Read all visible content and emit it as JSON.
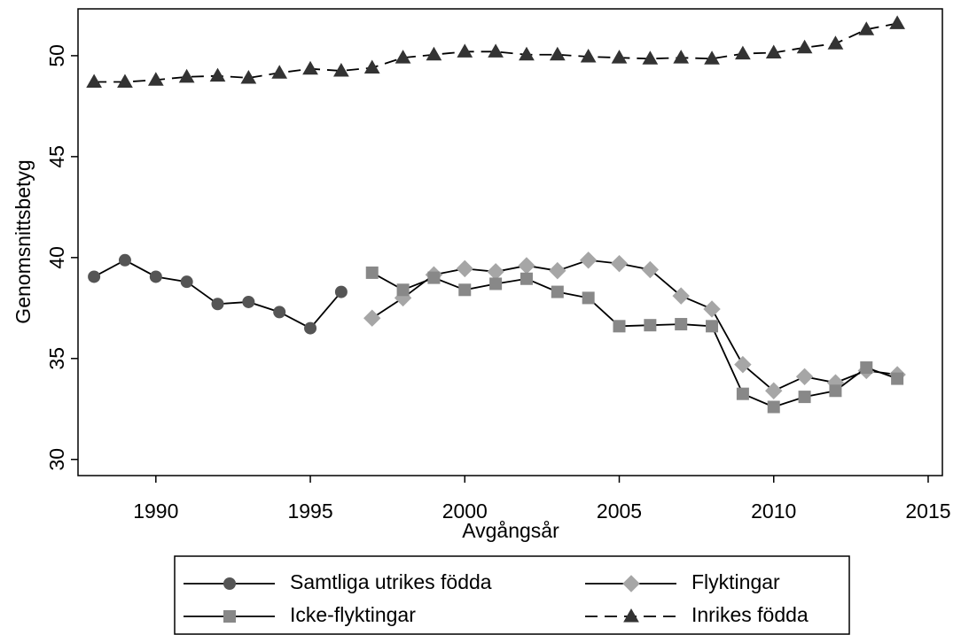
{
  "chart_data": {
    "type": "line",
    "x_label": "Avgångsår",
    "y_label": "Genomsnittsbetyg",
    "x": [
      1988,
      1989,
      1990,
      1991,
      1992,
      1993,
      1994,
      1995,
      1996,
      1997,
      1998,
      1999,
      2000,
      2001,
      2002,
      2003,
      2004,
      2005,
      2006,
      2007,
      2008,
      2009,
      2010,
      2011,
      2012,
      2013,
      2014
    ],
    "xlim": [
      1987.48,
      2015.46
    ],
    "xticks": [
      1990,
      1995,
      2000,
      2005,
      2010,
      2015
    ],
    "ylim": [
      29.2,
      52.32
    ],
    "yticks": [
      30,
      35,
      40,
      45,
      50
    ],
    "grid": false,
    "line_color": "#000000",
    "legend_position": "bottom",
    "series": [
      {
        "name": "Samtliga utrikes födda",
        "color": "#555555",
        "marker": "circle",
        "dashed": false,
        "values": [
          39.05,
          39.87,
          39.05,
          38.8,
          37.7,
          37.8,
          37.3,
          36.5,
          38.3,
          null,
          null,
          null,
          null,
          null,
          null,
          null,
          null,
          null,
          null,
          null,
          null,
          null,
          null,
          null,
          null,
          null,
          null
        ]
      },
      {
        "name": "Flyktingar",
        "color": "#a6a6a6",
        "marker": "diamond",
        "dashed": false,
        "values": [
          null,
          null,
          null,
          null,
          null,
          null,
          null,
          null,
          null,
          37.0,
          38.0,
          39.15,
          39.45,
          39.3,
          39.6,
          39.35,
          39.87,
          39.7,
          39.4,
          38.1,
          37.45,
          34.7,
          33.4,
          34.1,
          33.8,
          34.4,
          34.2
        ]
      },
      {
        "name": "Icke-flyktingar",
        "color": "#888888",
        "marker": "square",
        "dashed": false,
        "values": [
          null,
          null,
          null,
          null,
          null,
          null,
          null,
          null,
          null,
          39.25,
          38.4,
          39.0,
          38.4,
          38.7,
          38.95,
          38.3,
          38.0,
          36.6,
          36.65,
          36.7,
          36.6,
          33.25,
          32.6,
          33.1,
          33.4,
          34.55,
          34.0
        ]
      },
      {
        "name": "Inrikes födda",
        "color": "#333333",
        "marker": "triangle",
        "dashed": true,
        "values": [
          48.7,
          48.7,
          48.8,
          48.95,
          49.0,
          48.9,
          49.15,
          49.35,
          49.25,
          49.4,
          49.9,
          50.05,
          50.2,
          50.2,
          50.05,
          50.05,
          49.95,
          49.9,
          49.85,
          49.9,
          49.85,
          50.1,
          50.15,
          50.4,
          50.6,
          51.3,
          51.6
        ]
      }
    ]
  }
}
